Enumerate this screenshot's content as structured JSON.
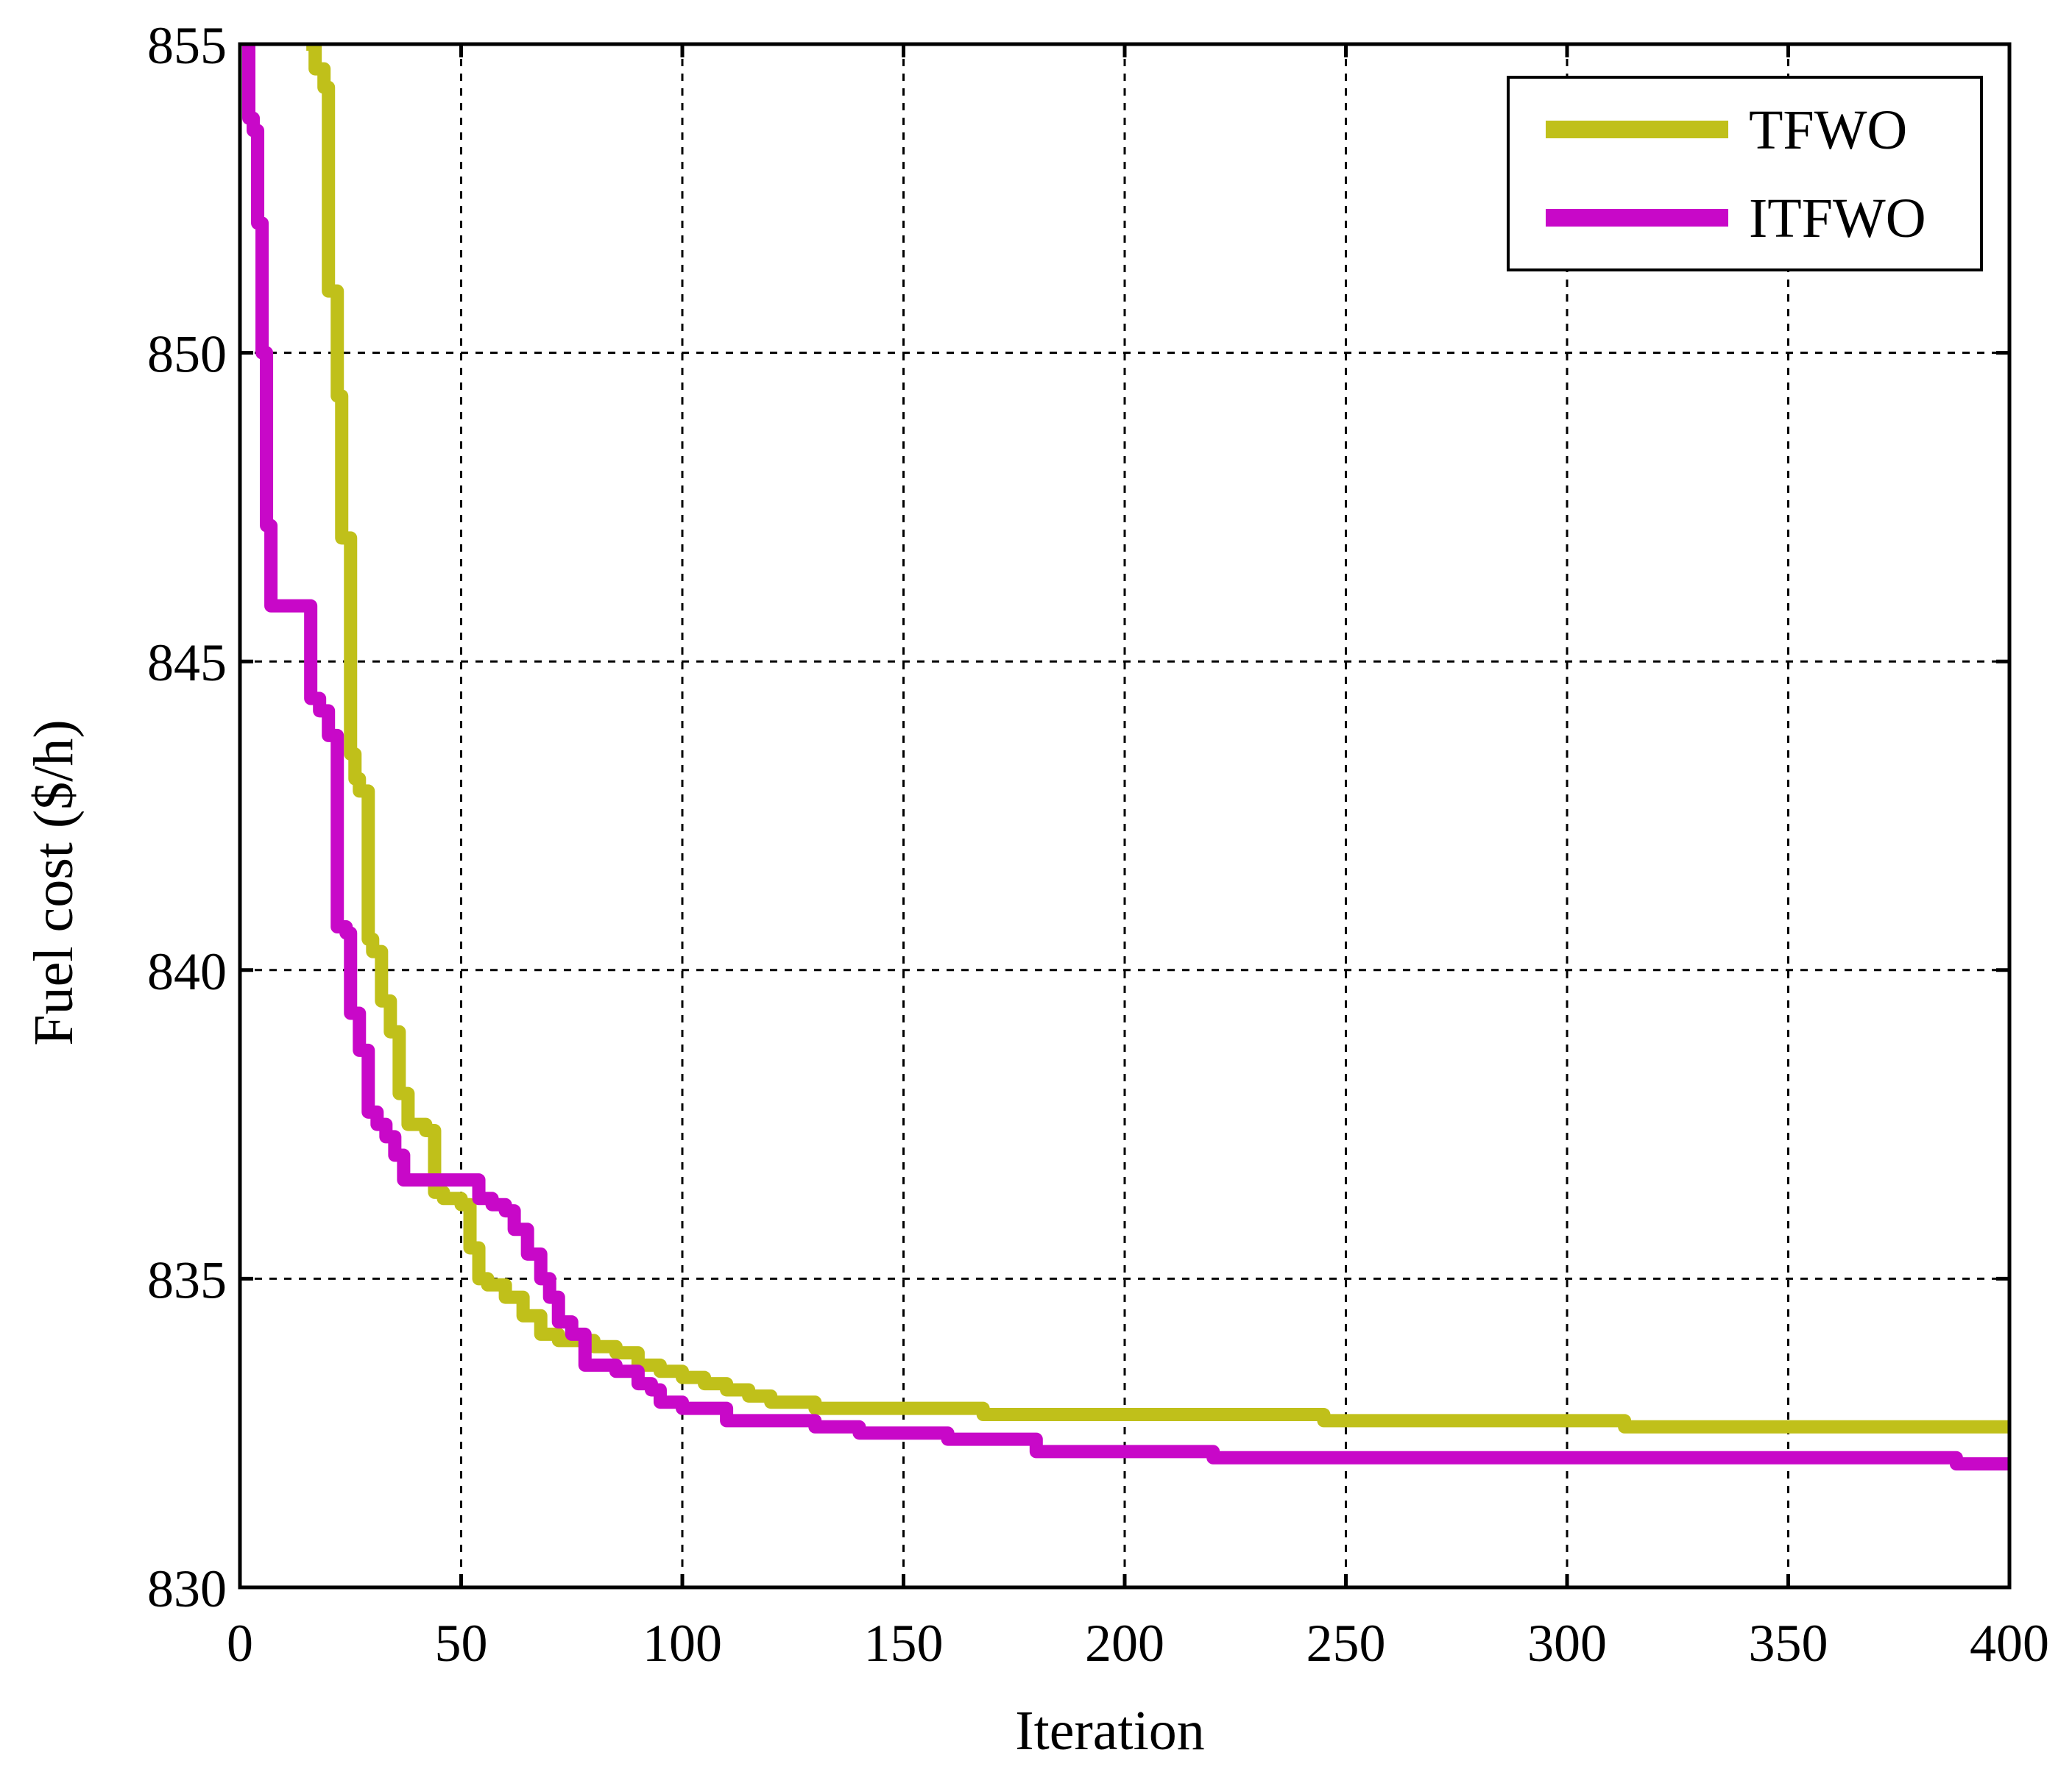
{
  "chart_data": {
    "type": "line",
    "title": "",
    "xlabel": "Iteration",
    "ylabel": "Fuel cost ($/h)",
    "xlim": [
      0,
      400
    ],
    "ylim": [
      830,
      855
    ],
    "x_ticks": [
      "0",
      "50",
      "100",
      "150",
      "200",
      "250",
      "300",
      "350",
      "400"
    ],
    "y_ticks": [
      "830",
      "835",
      "840",
      "845",
      "850",
      "855"
    ],
    "grid": true,
    "legend_position": "top-right",
    "series": [
      {
        "name": "TFWO",
        "color": "#c0c01a",
        "x": [
          15,
          17,
          19,
          20,
          22,
          23,
          25,
          26,
          27,
          29,
          30,
          32,
          34,
          36,
          38,
          40,
          42,
          44,
          46,
          50,
          52,
          54,
          56,
          60,
          64,
          68,
          72,
          76,
          80,
          85,
          90,
          95,
          100,
          105,
          108,
          110,
          115,
          120,
          130,
          140,
          150,
          168,
          180,
          200,
          220,
          240,
          245,
          260,
          280,
          300,
          312,
          313,
          340,
          370,
          400
        ],
        "y": [
          855,
          854.6,
          854.3,
          851,
          849.3,
          847,
          843.5,
          843.1,
          842.9,
          840.5,
          840.3,
          839.5,
          839.0,
          838.0,
          837.5,
          837.5,
          837.4,
          836.4,
          836.3,
          836.2,
          835.5,
          835.0,
          834.9,
          834.7,
          834.4,
          834.1,
          834.0,
          834.0,
          833.9,
          833.8,
          833.6,
          833.5,
          833.4,
          833.3,
          833.3,
          833.2,
          833.1,
          833.0,
          832.9,
          832.9,
          832.9,
          832.8,
          832.8,
          832.8,
          832.8,
          832.8,
          832.7,
          832.7,
          832.7,
          832.7,
          832.7,
          832.6,
          832.6,
          832.6,
          832.6
        ]
      },
      {
        "name": "ITFWO",
        "color": "#c808c8",
        "x": [
          1,
          2,
          3,
          4,
          5,
          6,
          7,
          8,
          10,
          15,
          16,
          18,
          20,
          22,
          24,
          25,
          27,
          29,
          31,
          33,
          35,
          37,
          40,
          45,
          50,
          54,
          57,
          60,
          62,
          65,
          68,
          70,
          72,
          75,
          78,
          85,
          90,
          93,
          95,
          100,
          110,
          115,
          120,
          130,
          140,
          160,
          180,
          210,
          220,
          250,
          300,
          350,
          385,
          388,
          400
        ],
        "y": [
          855,
          853.8,
          853.6,
          852.1,
          850.0,
          847.2,
          845.9,
          845.9,
          845.9,
          845.9,
          844.4,
          844.2,
          843.8,
          840.7,
          840.6,
          839.3,
          838.7,
          837.7,
          837.5,
          837.3,
          837.0,
          836.6,
          836.6,
          836.6,
          836.6,
          836.3,
          836.2,
          836.1,
          835.8,
          835.4,
          835.0,
          834.7,
          834.3,
          834.1,
          833.6,
          833.5,
          833.3,
          833.2,
          833.0,
          832.9,
          832.7,
          832.7,
          832.7,
          832.6,
          832.5,
          832.4,
          832.2,
          832.2,
          832.1,
          832.1,
          832.1,
          832.1,
          832.1,
          832.0,
          832.0
        ]
      }
    ]
  }
}
